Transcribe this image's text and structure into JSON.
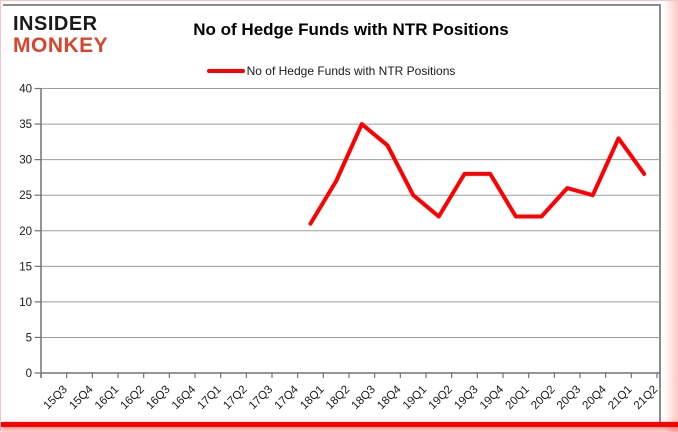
{
  "page": {
    "background": "#ffffff",
    "frame_border": "#f6c4c4",
    "bottom_bar_color": "#ff0000"
  },
  "logo": {
    "line1": "INSIDER",
    "line2": "MONKEY",
    "color1": "#1a1a1a",
    "color2": "#d9452c"
  },
  "header": {
    "title": "No of Hedge Funds with NTR Positions"
  },
  "legend": {
    "label": "No of Hedge Funds with NTR Positions",
    "color": "#ff0000"
  },
  "chart_data": {
    "type": "line",
    "title": "No of Hedge Funds with NTR Positions",
    "xlabel": "",
    "ylabel": "",
    "categories": [
      "15Q3",
      "15Q4",
      "16Q1",
      "16Q2",
      "16Q3",
      "16Q4",
      "17Q1",
      "17Q2",
      "17Q3",
      "17Q4",
      "18Q1",
      "18Q2",
      "18Q3",
      "18Q4",
      "19Q1",
      "19Q2",
      "19Q3",
      "19Q4",
      "20Q1",
      "20Q2",
      "20Q3",
      "20Q4",
      "21Q1",
      "21Q2"
    ],
    "series": [
      {
        "name": "No of Hedge Funds with NTR Positions",
        "color": "#ff0000",
        "start_index": 10,
        "values": [
          21,
          27,
          35,
          32,
          25,
          22,
          28,
          28,
          22,
          22,
          26,
          25,
          33,
          28
        ]
      }
    ],
    "ylim": [
      0,
      40
    ],
    "y_ticks": [
      0,
      5,
      10,
      15,
      20,
      25,
      30,
      35,
      40
    ],
    "grid": true,
    "legend_position": "top",
    "grid_color": "#9d9d9d",
    "axis_color": "#737373",
    "tick_label_color": "#1a1a1a"
  }
}
